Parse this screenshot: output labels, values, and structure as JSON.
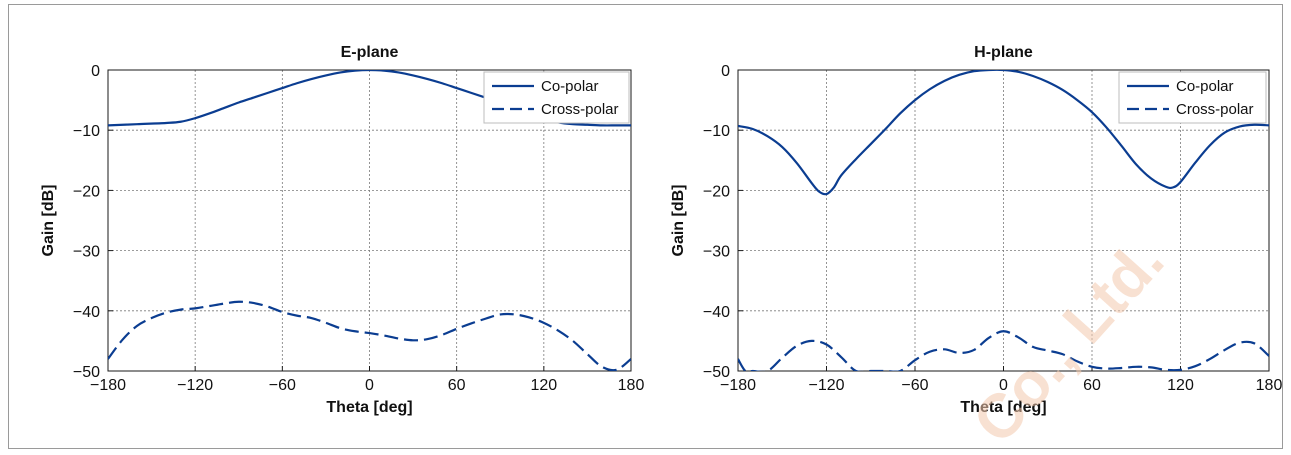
{
  "figure": {
    "watermark_text": "Co., Ltd."
  },
  "chart_data": [
    {
      "type": "line",
      "title": "E-plane",
      "xlabel": "Theta [deg]",
      "ylabel": "Gain [dB]",
      "xlim": [
        -180,
        180
      ],
      "ylim": [
        -50,
        0
      ],
      "xticks": [
        -180,
        -120,
        -60,
        0,
        60,
        120,
        180
      ],
      "yticks": [
        0,
        -10,
        -20,
        -30,
        -40,
        -50
      ],
      "xtick_labels": [
        "−180",
        "−120",
        "−60",
        "0",
        "60",
        "120",
        "180"
      ],
      "ytick_labels": [
        "0",
        "−10",
        "−20",
        "−30",
        "−40",
        "−50"
      ],
      "grid": true,
      "legend_position": "top-right",
      "series": [
        {
          "name": "Co-polar",
          "style": "solid",
          "color": "#0b3d91",
          "x": [
            -180,
            -160,
            -140,
            -130,
            -120,
            -110,
            -100,
            -90,
            -80,
            -70,
            -60,
            -50,
            -40,
            -30,
            -20,
            -10,
            0,
            10,
            20,
            30,
            40,
            50,
            60,
            70,
            80,
            90,
            100,
            110,
            120,
            130,
            140,
            150,
            160,
            170,
            180
          ],
          "y": [
            -9.2,
            -9.0,
            -8.8,
            -8.6,
            -8.0,
            -7.2,
            -6.3,
            -5.4,
            -4.6,
            -3.8,
            -3.0,
            -2.2,
            -1.5,
            -0.9,
            -0.4,
            -0.1,
            0,
            -0.1,
            -0.4,
            -0.9,
            -1.5,
            -2.2,
            -3.0,
            -3.8,
            -4.6,
            -5.4,
            -6.3,
            -7.2,
            -8.0,
            -8.7,
            -9.0,
            -9.1,
            -9.2,
            -9.2,
            -9.2
          ]
        },
        {
          "name": "Cross-polar",
          "style": "dashed",
          "color": "#0b3d91",
          "x": [
            -180,
            -170,
            -160,
            -150,
            -140,
            -130,
            -120,
            -110,
            -100,
            -90,
            -80,
            -70,
            -60,
            -50,
            -40,
            -30,
            -20,
            -10,
            0,
            10,
            20,
            30,
            40,
            50,
            60,
            70,
            80,
            90,
            100,
            110,
            120,
            130,
            140,
            150,
            160,
            170,
            180
          ],
          "y": [
            -48.0,
            -44.8,
            -42.5,
            -41.2,
            -40.3,
            -39.8,
            -39.6,
            -39.2,
            -38.8,
            -38.5,
            -38.7,
            -39.3,
            -40.2,
            -40.8,
            -41.2,
            -42.0,
            -42.9,
            -43.4,
            -43.7,
            -44.1,
            -44.6,
            -44.9,
            -44.7,
            -44.0,
            -43.0,
            -42.1,
            -41.3,
            -40.6,
            -40.6,
            -41.1,
            -42.0,
            -43.3,
            -45.0,
            -47.2,
            -49.3,
            -49.8,
            -48.0
          ]
        }
      ]
    },
    {
      "type": "line",
      "title": "H-plane",
      "xlabel": "Theta [deg]",
      "ylabel": "Gain [dB]",
      "xlim": [
        -180,
        180
      ],
      "ylim": [
        -50,
        0
      ],
      "xticks": [
        -180,
        -120,
        -60,
        0,
        60,
        120,
        180
      ],
      "yticks": [
        0,
        -10,
        -20,
        -30,
        -40,
        -50
      ],
      "xtick_labels": [
        "−180",
        "−120",
        "−60",
        "0",
        "60",
        "120",
        "180"
      ],
      "ytick_labels": [
        "0",
        "−10",
        "−20",
        "−30",
        "−40",
        "−50"
      ],
      "grid": true,
      "legend_position": "top-right",
      "series": [
        {
          "name": "Co-polar",
          "style": "solid",
          "color": "#0b3d91",
          "x": [
            -180,
            -170,
            -160,
            -150,
            -140,
            -130,
            -125,
            -120,
            -115,
            -110,
            -100,
            -90,
            -80,
            -70,
            -60,
            -50,
            -40,
            -30,
            -20,
            -10,
            0,
            10,
            20,
            30,
            40,
            50,
            60,
            70,
            80,
            90,
            100,
            110,
            115,
            120,
            130,
            140,
            150,
            160,
            170,
            180
          ],
          "y": [
            -9.3,
            -9.8,
            -11.0,
            -12.8,
            -15.5,
            -18.8,
            -20.2,
            -20.6,
            -19.5,
            -17.5,
            -14.8,
            -12.3,
            -9.8,
            -7.2,
            -5.0,
            -3.2,
            -1.8,
            -0.8,
            -0.2,
            0,
            0,
            -0.3,
            -1.0,
            -2.0,
            -3.3,
            -5.0,
            -7.0,
            -9.6,
            -12.6,
            -15.7,
            -18.0,
            -19.4,
            -19.5,
            -18.6,
            -15.4,
            -12.5,
            -10.4,
            -9.4,
            -9.1,
            -9.2
          ]
        },
        {
          "name": "Cross-polar",
          "style": "dashed",
          "color": "#0b3d91",
          "x": [
            -180,
            -175,
            -170,
            -160,
            -150,
            -140,
            -130,
            -120,
            -110,
            -100,
            -90,
            -80,
            -70,
            -60,
            -50,
            -40,
            -30,
            -20,
            -10,
            0,
            10,
            20,
            30,
            40,
            50,
            60,
            70,
            80,
            90,
            100,
            110,
            120,
            130,
            140,
            150,
            160,
            170,
            180
          ],
          "y": [
            -48.0,
            -50.0,
            -50.0,
            -50.0,
            -47.8,
            -45.8,
            -45.0,
            -45.6,
            -47.7,
            -50.0,
            -50.0,
            -50.0,
            -50.0,
            -48.2,
            -46.8,
            -46.4,
            -47.0,
            -46.5,
            -44.5,
            -43.4,
            -44.4,
            -46.0,
            -46.6,
            -47.2,
            -48.4,
            -49.3,
            -49.6,
            -49.5,
            -49.3,
            -49.4,
            -49.8,
            -49.8,
            -49.2,
            -48.0,
            -46.5,
            -45.3,
            -45.4,
            -47.5
          ]
        }
      ]
    }
  ]
}
